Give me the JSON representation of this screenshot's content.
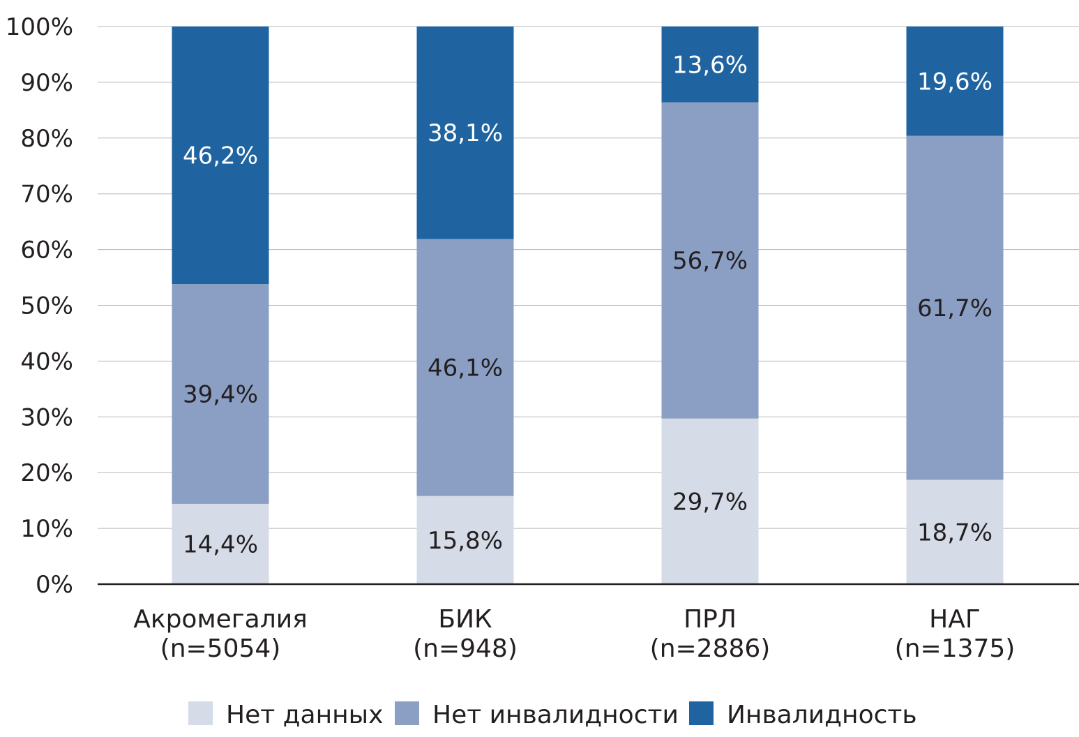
{
  "chart_data": {
    "type": "bar",
    "stacked": true,
    "title": "",
    "xlabel": "",
    "ylabel": "",
    "ylim": [
      0,
      100
    ],
    "yticks": [
      "0%",
      "10%",
      "20%",
      "30%",
      "40%",
      "50%",
      "60%",
      "70%",
      "80%",
      "90%",
      "100%"
    ],
    "grid": true,
    "legend_position": "bottom",
    "categories": [
      {
        "name": "Акромегалия",
        "n": "(n=5054)"
      },
      {
        "name": "БИК",
        "n": "(n=948)"
      },
      {
        "name": "ПРЛ",
        "n": "(n=2886)"
      },
      {
        "name": "НАГ",
        "n": "(n=1375)"
      }
    ],
    "series": [
      {
        "name": "Нет данных",
        "color": "#d5dce8",
        "label_color": "#231f20",
        "values": [
          14.4,
          15.8,
          29.7,
          18.7
        ],
        "labels": [
          "14,4%",
          "15,8%",
          "29,7%",
          "18,7%"
        ]
      },
      {
        "name": "Нет инвалидности",
        "color": "#8b9fc5",
        "label_color": "#231f20",
        "values": [
          39.4,
          46.1,
          56.7,
          61.7
        ],
        "labels": [
          "39,4%",
          "46,1%",
          "56,7%",
          "61,7%"
        ]
      },
      {
        "name": "Инвалидность",
        "color": "#1f64a0",
        "label_color": "#ffffff",
        "values": [
          46.2,
          38.1,
          13.6,
          19.6
        ],
        "labels": [
          "46,2%",
          "38,1%",
          "13,6%",
          "19,6%"
        ]
      }
    ]
  }
}
